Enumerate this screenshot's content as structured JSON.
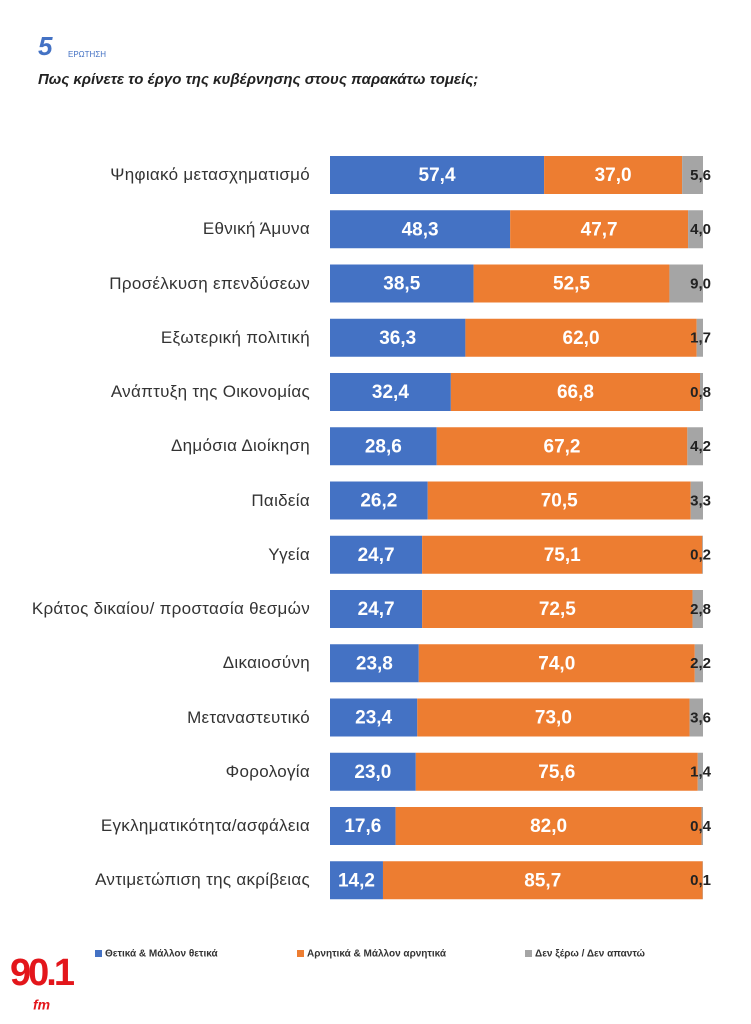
{
  "header": {
    "number": "5",
    "label": "ΕΡΩΤΗΣΗ"
  },
  "logo": {
    "main": "90.1",
    "sub": "fm"
  },
  "chart_data": {
    "type": "stacked-bar-horizontal",
    "title": "Πως κρίνετε το έργο της κυβέρνησης στους παρακάτω τομείς;",
    "categories": [
      "Ψηφιακό μετασχηματισμό",
      "Εθνική Άμυνα",
      "Προσέλκυση επενδύσεων",
      "Εξωτερική πολιτική",
      "Ανάπτυξη της Οικονομίας",
      "Δημόσια Διοίκηση",
      "Παιδεία",
      "Υγεία",
      "Κράτος δικαίου/ προστασία θεσμών",
      "Δικαιοσύνη",
      "Μεταναστευτικό",
      "Φορολογία",
      "Εγκληματικότητα/ασφάλεια",
      "Αντιμετώπιση της ακρίβειας"
    ],
    "xlim": [
      0,
      100
    ],
    "series": [
      {
        "name": "Θετικά & Μάλλον θετικά",
        "color": "#4472c4",
        "values": [
          57.4,
          48.3,
          38.5,
          36.3,
          32.4,
          28.6,
          26.2,
          24.7,
          24.7,
          23.8,
          23.4,
          23.0,
          17.6,
          14.2
        ],
        "value_labels": [
          "57,4",
          "48,3",
          "38,5",
          "36,3",
          "32,4",
          "28,6",
          "26,2",
          "24,7",
          "24,7",
          "23,8",
          "23,4",
          "23,0",
          "17,6",
          "14,2"
        ]
      },
      {
        "name": "Αρνητικά & Μάλλον αρνητικά",
        "color": "#ed7d31",
        "values": [
          37.0,
          47.7,
          52.5,
          62.0,
          66.8,
          67.2,
          70.5,
          75.1,
          72.5,
          74.0,
          73.0,
          75.6,
          82.0,
          85.7
        ],
        "value_labels": [
          "37,0",
          "47,7",
          "52,5",
          "62,0",
          "66,8",
          "67,2",
          "70,5",
          "75,1",
          "72,5",
          "74,0",
          "73,0",
          "75,6",
          "82,0",
          "85,7"
        ]
      },
      {
        "name": "Δεν ξέρω / Δεν απαντώ",
        "color": "#a5a5a5",
        "values": [
          5.6,
          4.0,
          9.0,
          1.7,
          0.8,
          4.2,
          3.3,
          0.2,
          2.8,
          2.2,
          3.6,
          1.4,
          0.4,
          0.1
        ],
        "value_labels": [
          "5,6",
          "4,0",
          "9,0",
          "1,7",
          "0,8",
          "4,2",
          "3,3",
          "0,2",
          "2,8",
          "2,2",
          "3,6",
          "1,4",
          "0,4",
          "0,1"
        ]
      }
    ]
  }
}
